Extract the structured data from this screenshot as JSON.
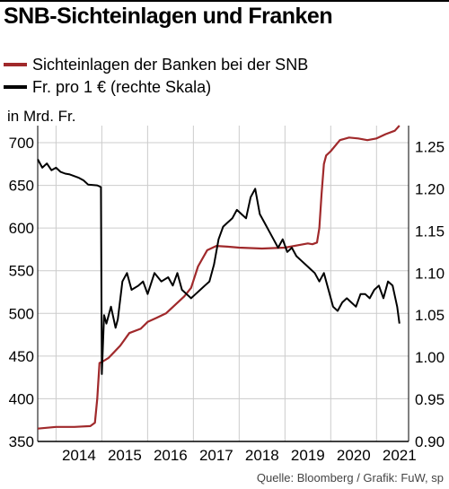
{
  "title": "SNB-Sichteinlagen und Franken",
  "source": "Quelle: Bloomberg / Grafik: FuW, sp",
  "colors": {
    "sichteinlagen": "#a0292b",
    "franken": "#000000",
    "grid": "#cccccc"
  },
  "chart_data": {
    "type": "line",
    "title": "SNB-Sichteinlagen und Franken",
    "y_left_label": "in Mrd. Fr.",
    "y_left_range": [
      350,
      720
    ],
    "y_left_ticks": [
      "350",
      "400",
      "450",
      "500",
      "550",
      "600",
      "650",
      "700"
    ],
    "y_right_label": "",
    "y_right_range": [
      0.9,
      1.275
    ],
    "y_right_ticks": [
      "0.90",
      "0.95",
      "1.00",
      "1.05",
      "1.10",
      "1.15",
      "1.20",
      "1.25"
    ],
    "x_range": [
      2013.6,
      2021.7
    ],
    "x_ticks": [
      "2014",
      "2015",
      "2016",
      "2017",
      "2018",
      "2019",
      "2020",
      "2021"
    ],
    "grid": true,
    "series": [
      {
        "name": "Sichteinlagen der Banken bei der SNB",
        "axis": "left",
        "x": [
          2013.6,
          2014.0,
          2014.4,
          2014.75,
          2014.85,
          2014.9,
          2014.95,
          2015.0,
          2015.15,
          2015.4,
          2015.6,
          2015.85,
          2016.0,
          2016.2,
          2016.4,
          2016.6,
          2016.8,
          2016.95,
          2017.1,
          2017.3,
          2017.5,
          2017.8,
          2018.0,
          2018.5,
          2019.0,
          2019.3,
          2019.5,
          2019.6,
          2019.7,
          2019.75,
          2019.8,
          2019.85,
          2019.9,
          2020.0,
          2020.2,
          2020.4,
          2020.6,
          2020.8,
          2021.0,
          2021.2,
          2021.4,
          2021.5
        ],
        "values": [
          365,
          367,
          367,
          368,
          372,
          400,
          442,
          443,
          448,
          462,
          477,
          482,
          490,
          495,
          500,
          510,
          520,
          530,
          555,
          574,
          579,
          578,
          577,
          576,
          577,
          580,
          582,
          581,
          583,
          600,
          640,
          675,
          685,
          690,
          703,
          706,
          705,
          703,
          705,
          710,
          714,
          720
        ]
      },
      {
        "name": "Fr. pro 1 € (rechte Skala)",
        "axis": "right",
        "x": [
          2013.6,
          2013.7,
          2013.8,
          2013.9,
          2014.0,
          2014.1,
          2014.2,
          2014.3,
          2014.4,
          2014.5,
          2014.6,
          2014.7,
          2014.9,
          2014.98,
          2015.0,
          2015.05,
          2015.1,
          2015.2,
          2015.3,
          2015.35,
          2015.45,
          2015.55,
          2015.65,
          2015.8,
          2015.9,
          2016.0,
          2016.15,
          2016.3,
          2016.45,
          2016.55,
          2016.65,
          2016.75,
          2016.85,
          2016.95,
          2017.05,
          2017.15,
          2017.25,
          2017.35,
          2017.45,
          2017.55,
          2017.65,
          2017.75,
          2017.85,
          2017.95,
          2018.05,
          2018.15,
          2018.25,
          2018.35,
          2018.45,
          2018.55,
          2018.65,
          2018.75,
          2018.85,
          2018.95,
          2019.05,
          2019.15,
          2019.25,
          2019.35,
          2019.45,
          2019.55,
          2019.65,
          2019.75,
          2019.85,
          2019.95,
          2020.05,
          2020.15,
          2020.25,
          2020.35,
          2020.45,
          2020.55,
          2020.65,
          2020.75,
          2020.85,
          2020.95,
          2021.05,
          2021.15,
          2021.25,
          2021.35,
          2021.45,
          2021.5
        ],
        "values": [
          1.235,
          1.225,
          1.23,
          1.222,
          1.225,
          1.22,
          1.218,
          1.217,
          1.215,
          1.213,
          1.21,
          1.205,
          1.204,
          1.202,
          0.98,
          1.05,
          1.04,
          1.06,
          1.035,
          1.045,
          1.09,
          1.1,
          1.08,
          1.085,
          1.09,
          1.075,
          1.1,
          1.09,
          1.095,
          1.085,
          1.1,
          1.08,
          1.075,
          1.07,
          1.075,
          1.08,
          1.085,
          1.09,
          1.11,
          1.14,
          1.155,
          1.16,
          1.165,
          1.175,
          1.17,
          1.165,
          1.19,
          1.2,
          1.17,
          1.16,
          1.15,
          1.14,
          1.13,
          1.14,
          1.125,
          1.13,
          1.12,
          1.115,
          1.11,
          1.105,
          1.1,
          1.09,
          1.1,
          1.08,
          1.06,
          1.055,
          1.065,
          1.07,
          1.065,
          1.06,
          1.075,
          1.075,
          1.07,
          1.08,
          1.085,
          1.07,
          1.09,
          1.085,
          1.06,
          1.04
        ]
      }
    ]
  }
}
